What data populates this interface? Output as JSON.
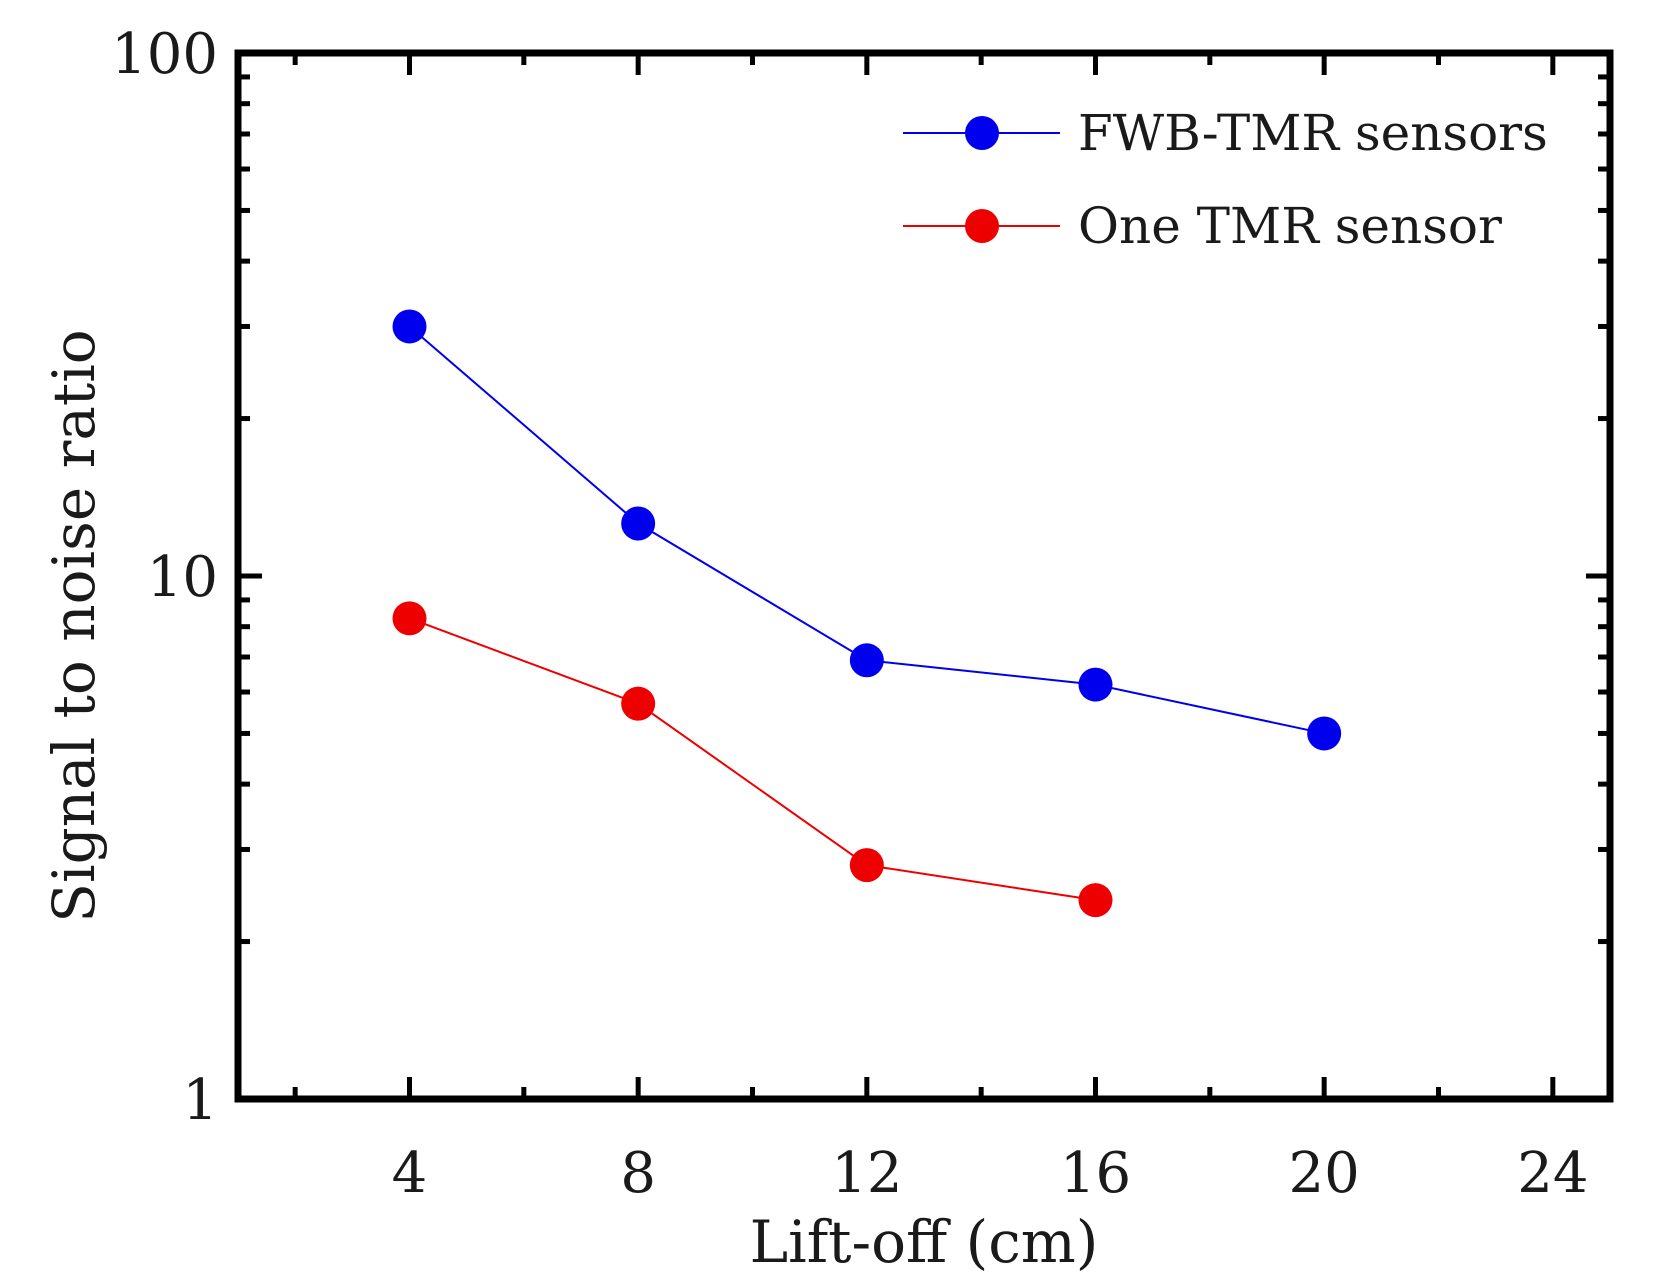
{
  "chart_data": {
    "type": "line",
    "title": "",
    "xlabel": "Lift-off (cm)",
    "ylabel": "Signal to noise ratio",
    "xlim": [
      1,
      25
    ],
    "ylim": [
      1,
      100
    ],
    "yscale": "log",
    "grid": false,
    "legend_position": "top-right",
    "xticks": [
      4,
      8,
      12,
      16,
      20,
      24
    ],
    "xtick_labels": [
      "4",
      "8",
      "12",
      "16",
      "20",
      "24"
    ],
    "yticks": [
      1,
      10,
      100
    ],
    "ytick_labels": [
      "1",
      "10",
      "100"
    ],
    "series": [
      {
        "name": "FWB-TMR sensors",
        "color": "#0000ee",
        "x": [
          4,
          8,
          12,
          16,
          20
        ],
        "y": [
          30,
          12.6,
          6.9,
          6.2,
          5.0
        ]
      },
      {
        "name": "One TMR sensor",
        "color": "#ee0000",
        "x": [
          4,
          8,
          12,
          16
        ],
        "y": [
          8.3,
          5.7,
          2.8,
          2.4
        ]
      }
    ]
  }
}
